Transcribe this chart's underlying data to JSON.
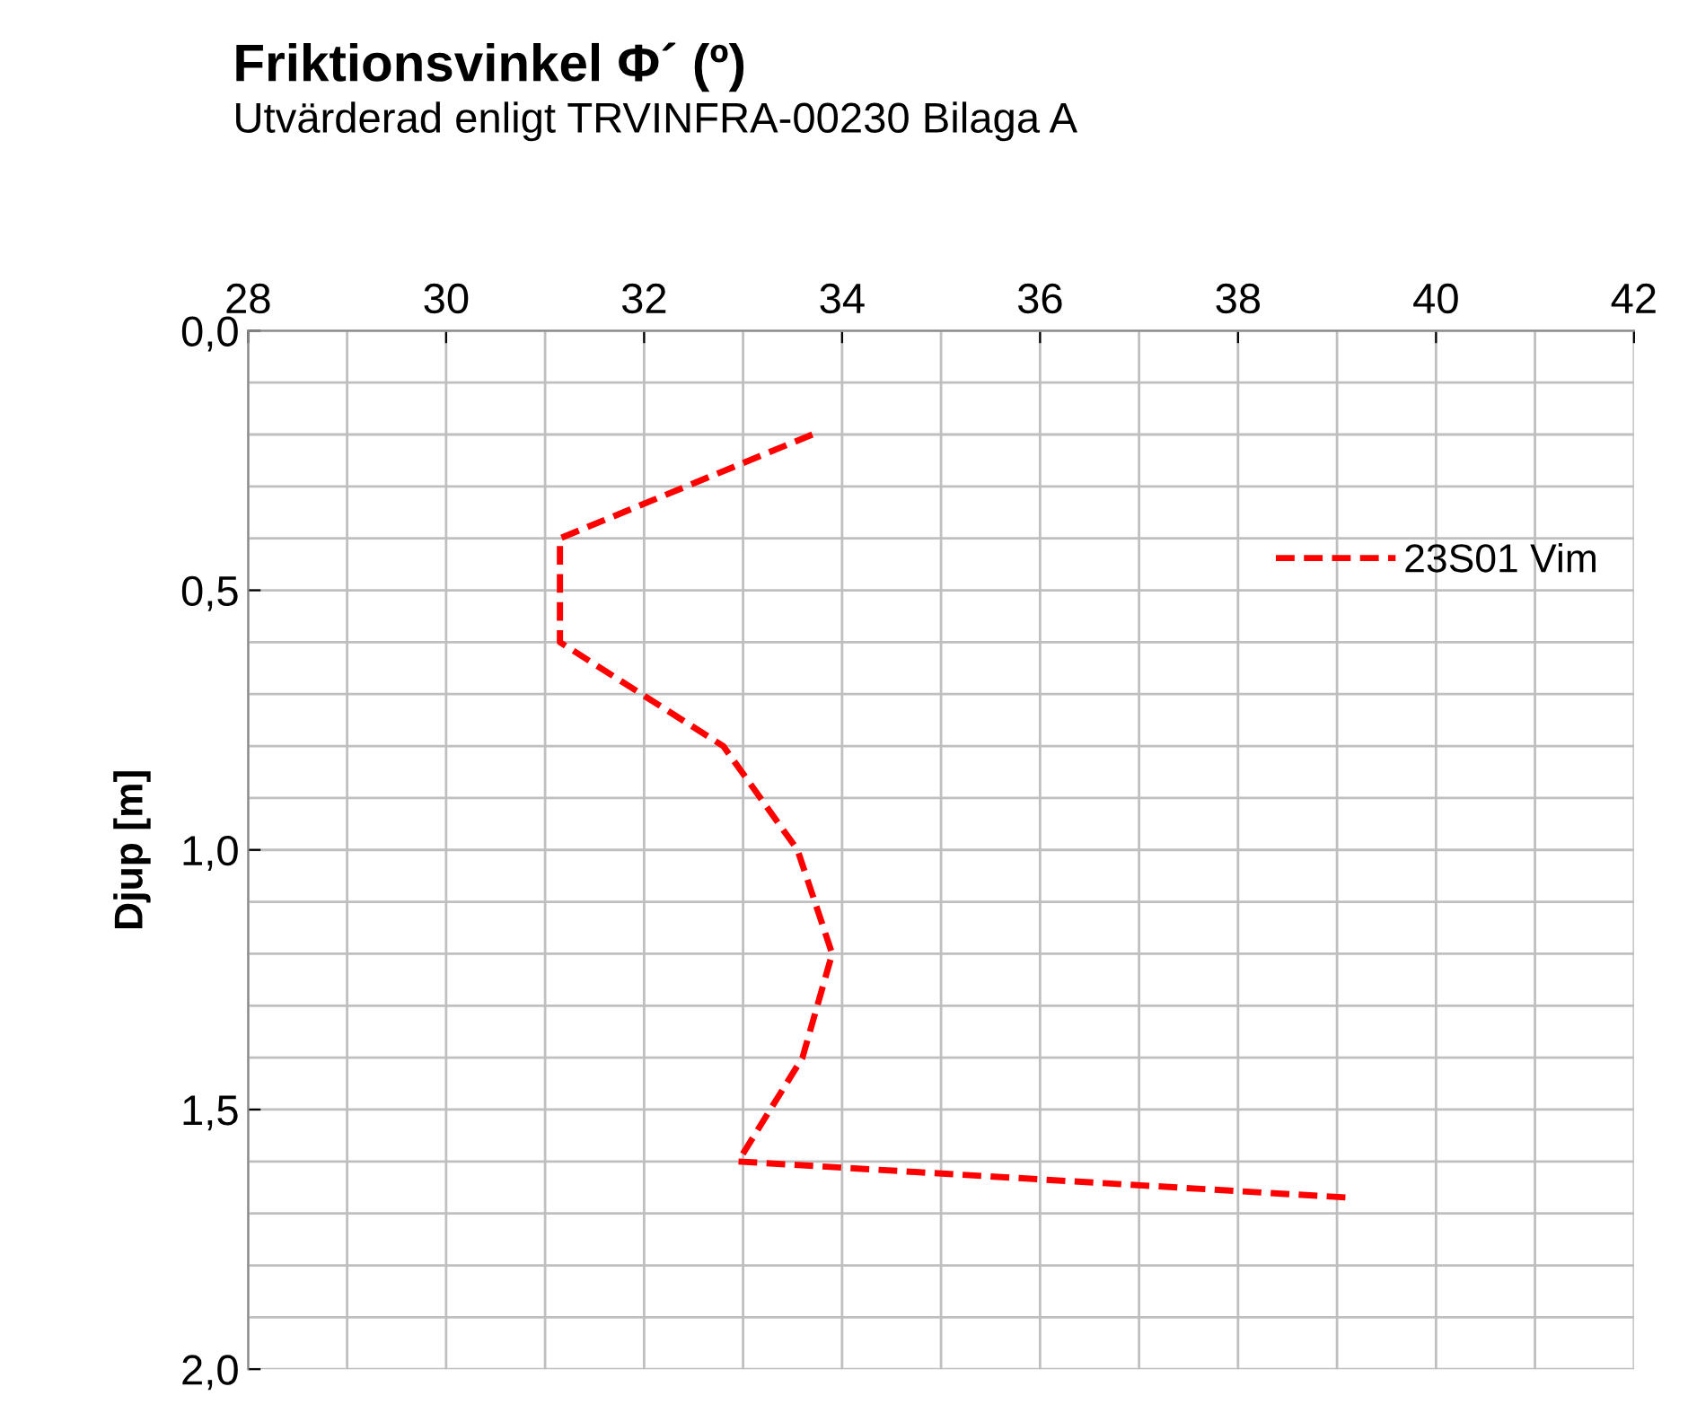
{
  "chart_data": {
    "type": "line",
    "title": "Friktionsvinkel Φ´ (º)",
    "subtitle": "Utvärderad enligt TRVINFRA-00230 Bilaga A",
    "ylabel": "Djup [m]",
    "series": [
      {
        "name": "23S01 Vim",
        "color": "#ff0000",
        "line_style": "dashed",
        "x": [
          33.7,
          31.15,
          31.15,
          32.8,
          33.55,
          33.9,
          33.6,
          32.95,
          39.15
        ],
        "values": [
          0.2,
          0.4,
          0.6,
          0.8,
          1.0,
          1.2,
          1.4,
          1.6,
          1.67
        ]
      }
    ],
    "xlim": [
      28,
      42
    ],
    "xticks": [
      28,
      {
        "value": 29,
        "label": null
      },
      30,
      {
        "value": 31,
        "label": null
      },
      32,
      {
        "value": 33,
        "label": null
      },
      34,
      {
        "value": 35,
        "label": null
      },
      36,
      {
        "value": 37,
        "label": null
      },
      38,
      {
        "value": 39,
        "label": null
      },
      40,
      {
        "value": 41,
        "label": null
      },
      42
    ],
    "ylim": [
      2.0,
      0.0
    ],
    "yticks": [
      {
        "value": 0.0,
        "label": "0,0"
      },
      {
        "value": 0.1,
        "label": null
      },
      {
        "value": 0.2,
        "label": null
      },
      {
        "value": 0.3,
        "label": null
      },
      {
        "value": 0.4,
        "label": null
      },
      {
        "value": 0.5,
        "label": "0,5"
      },
      {
        "value": 0.6,
        "label": null
      },
      {
        "value": 0.7,
        "label": null
      },
      {
        "value": 0.8,
        "label": null
      },
      {
        "value": 0.9,
        "label": null
      },
      {
        "value": 1.0,
        "label": "1,0"
      },
      {
        "value": 1.1,
        "label": null
      },
      {
        "value": 1.2,
        "label": null
      },
      {
        "value": 1.3,
        "label": null
      },
      {
        "value": 1.4,
        "label": null
      },
      {
        "value": 1.5,
        "label": "1,5"
      },
      {
        "value": 1.6,
        "label": null
      },
      {
        "value": 1.7,
        "label": null
      },
      {
        "value": 1.8,
        "label": null
      },
      {
        "value": 1.9,
        "label": null
      },
      {
        "value": 2.0,
        "label": "2,0"
      }
    ],
    "grid": true,
    "legend": "right",
    "marker": "none"
  }
}
